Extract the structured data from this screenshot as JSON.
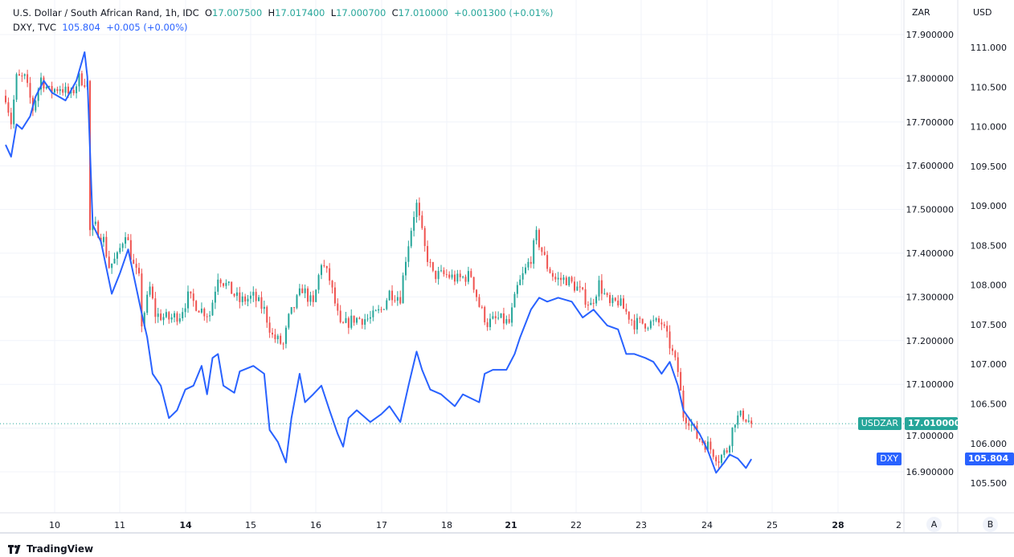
{
  "legend": {
    "main_title": "U.S. Dollar / South African Rand, 1h, IDC",
    "o_label": "O",
    "o_value": "17.007500",
    "h_label": "H",
    "h_value": "17.017400",
    "l_label": "L",
    "l_value": "17.000700",
    "c_label": "C",
    "c_value": "17.010000",
    "change": "+0.001300 (+0.01%)",
    "overlay_title": "DXY, TVC",
    "overlay_value": "105.804",
    "overlay_change": "+0.005 (+0.00%)"
  },
  "scales": {
    "left_unit": "ZAR",
    "right_unit": "USD",
    "left_button": "A",
    "right_button": "B"
  },
  "tags": {
    "main_symbol": "USDZAR",
    "main_price": "17.010000",
    "overlay_symbol": "DXY",
    "overlay_price": "105.804"
  },
  "footer": {
    "brand": "TradingView"
  },
  "colors": {
    "up": "#26a69a",
    "down": "#ef5350",
    "overlay": "#2962ff",
    "grid": "#f0f3fa"
  },
  "chart_data": {
    "type": "candlestick+line",
    "interval": "1h",
    "x_ticks": [
      "10",
      "11",
      "14",
      "15",
      "16",
      "17",
      "18",
      "21",
      "22",
      "23",
      "24",
      "25",
      "28",
      "2"
    ],
    "x_ticks_bold": [
      "14",
      "21",
      "28"
    ],
    "zar_axis": {
      "ticks": [
        "17.900000",
        "17.800000",
        "17.700000",
        "17.600000",
        "17.500000",
        "17.400000",
        "17.300000",
        "17.200000",
        "17.100000",
        "17.000000",
        "16.900000"
      ],
      "range": [
        16.9,
        17.9
      ]
    },
    "usd_axis": {
      "ticks": [
        "111.000",
        "110.500",
        "110.000",
        "109.500",
        "109.000",
        "108.500",
        "108.000",
        "107.500",
        "107.000",
        "106.500",
        "106.000",
        "105.500"
      ],
      "range": [
        105.5,
        111.0
      ]
    },
    "usdzar_close": [
      [
        9,
        6,
        17.76
      ],
      [
        9,
        8,
        17.7
      ],
      [
        9,
        10,
        17.8
      ],
      [
        9,
        13,
        17.8
      ],
      [
        9,
        16,
        17.73
      ],
      [
        9,
        19,
        17.8
      ],
      [
        9,
        22,
        17.77
      ],
      [
        10,
        2,
        17.78
      ],
      [
        10,
        6,
        17.76
      ],
      [
        10,
        9,
        17.8
      ],
      [
        10,
        12,
        17.79
      ],
      [
        10,
        13,
        17.45
      ],
      [
        10,
        15,
        17.46
      ],
      [
        10,
        18,
        17.43
      ],
      [
        10,
        20,
        17.37
      ],
      [
        10,
        23,
        17.39
      ],
      [
        11,
        2,
        17.45
      ],
      [
        11,
        5,
        17.37
      ],
      [
        11,
        7,
        17.34
      ],
      [
        11,
        8,
        17.24
      ],
      [
        11,
        11,
        17.32
      ],
      [
        11,
        13,
        17.26
      ],
      [
        11,
        18,
        17.25
      ],
      [
        11,
        22,
        17.26
      ],
      [
        14,
        1,
        17.3
      ],
      [
        14,
        6,
        17.27
      ],
      [
        14,
        9,
        17.26
      ],
      [
        14,
        12,
        17.35
      ],
      [
        14,
        16,
        17.32
      ],
      [
        14,
        20,
        17.29
      ],
      [
        15,
        1,
        17.3
      ],
      [
        15,
        5,
        17.27
      ],
      [
        15,
        8,
        17.21
      ],
      [
        15,
        12,
        17.19
      ],
      [
        15,
        14,
        17.25
      ],
      [
        15,
        19,
        17.32
      ],
      [
        15,
        23,
        17.28
      ],
      [
        16,
        2,
        17.38
      ],
      [
        16,
        5,
        17.34
      ],
      [
        16,
        9,
        17.23
      ],
      [
        16,
        14,
        17.25
      ],
      [
        16,
        20,
        17.25
      ],
      [
        17,
        0,
        17.27
      ],
      [
        17,
        3,
        17.31
      ],
      [
        17,
        7,
        17.3
      ],
      [
        17,
        9,
        17.39
      ],
      [
        17,
        12,
        17.49
      ],
      [
        17,
        13,
        17.51
      ],
      [
        17,
        16,
        17.41
      ],
      [
        17,
        19,
        17.35
      ],
      [
        18,
        0,
        17.35
      ],
      [
        18,
        4,
        17.34
      ],
      [
        18,
        9,
        17.35
      ],
      [
        18,
        12,
        17.28
      ],
      [
        18,
        15,
        17.24
      ],
      [
        18,
        19,
        17.25
      ],
      [
        18,
        23,
        17.24
      ],
      [
        21,
        2,
        17.32
      ],
      [
        21,
        7,
        17.39
      ],
      [
        21,
        9,
        17.44
      ],
      [
        21,
        13,
        17.37
      ],
      [
        21,
        16,
        17.34
      ],
      [
        21,
        20,
        17.34
      ],
      [
        22,
        0,
        17.32
      ],
      [
        22,
        5,
        17.28
      ],
      [
        22,
        8,
        17.33
      ],
      [
        22,
        12,
        17.28
      ],
      [
        22,
        15,
        17.29
      ],
      [
        22,
        21,
        17.24
      ],
      [
        23,
        3,
        17.24
      ],
      [
        23,
        7,
        17.24
      ],
      [
        23,
        10,
        17.19
      ],
      [
        23,
        13,
        17.13
      ],
      [
        23,
        15,
        17.03
      ],
      [
        23,
        17,
        17.02
      ],
      [
        23,
        20,
        16.98
      ],
      [
        24,
        0,
        16.96
      ],
      [
        24,
        4,
        16.93
      ],
      [
        24,
        7,
        16.95
      ],
      [
        24,
        10,
        17.02
      ],
      [
        24,
        13,
        17.03
      ],
      [
        24,
        16,
        17.01
      ]
    ],
    "dxy_close": [
      [
        9,
        6,
        109.77
      ],
      [
        9,
        8,
        109.62
      ],
      [
        9,
        10,
        110.03
      ],
      [
        9,
        12,
        109.97
      ],
      [
        9,
        15,
        110.13
      ],
      [
        9,
        17,
        110.38
      ],
      [
        9,
        20,
        110.58
      ],
      [
        9,
        23,
        110.43
      ],
      [
        10,
        4,
        110.33
      ],
      [
        10,
        8,
        110.58
      ],
      [
        10,
        11,
        110.94
      ],
      [
        10,
        12,
        110.63
      ],
      [
        10,
        14,
        108.76
      ],
      [
        10,
        17,
        108.55
      ],
      [
        10,
        20,
        108.05
      ],
      [
        10,
        21,
        107.89
      ],
      [
        11,
        0,
        108.15
      ],
      [
        11,
        3,
        108.45
      ],
      [
        11,
        8,
        107.64
      ],
      [
        11,
        10,
        107.34
      ],
      [
        11,
        12,
        106.88
      ],
      [
        11,
        15,
        106.73
      ],
      [
        11,
        18,
        106.32
      ],
      [
        11,
        21,
        106.42
      ],
      [
        14,
        0,
        106.68
      ],
      [
        14,
        3,
        106.73
      ],
      [
        14,
        6,
        106.98
      ],
      [
        14,
        8,
        106.62
      ],
      [
        14,
        10,
        107.08
      ],
      [
        14,
        12,
        107.13
      ],
      [
        14,
        14,
        106.73
      ],
      [
        14,
        18,
        106.64
      ],
      [
        14,
        20,
        106.91
      ],
      [
        15,
        1,
        106.98
      ],
      [
        15,
        5,
        106.88
      ],
      [
        15,
        7,
        106.17
      ],
      [
        15,
        10,
        106.02
      ],
      [
        15,
        13,
        105.76
      ],
      [
        15,
        15,
        106.32
      ],
      [
        15,
        18,
        106.88
      ],
      [
        15,
        20,
        106.52
      ],
      [
        15,
        23,
        106.62
      ],
      [
        16,
        2,
        106.73
      ],
      [
        16,
        5,
        106.42
      ],
      [
        16,
        8,
        106.12
      ],
      [
        16,
        10,
        105.96
      ],
      [
        16,
        12,
        106.32
      ],
      [
        16,
        15,
        106.42
      ],
      [
        16,
        20,
        106.27
      ],
      [
        17,
        0,
        106.37
      ],
      [
        17,
        3,
        106.47
      ],
      [
        17,
        7,
        106.27
      ],
      [
        17,
        10,
        106.73
      ],
      [
        17,
        13,
        107.16
      ],
      [
        17,
        15,
        106.93
      ],
      [
        17,
        18,
        106.68
      ],
      [
        17,
        22,
        106.62
      ],
      [
        18,
        3,
        106.47
      ],
      [
        18,
        6,
        106.62
      ],
      [
        18,
        9,
        106.57
      ],
      [
        18,
        12,
        106.52
      ],
      [
        18,
        14,
        106.88
      ],
      [
        18,
        17,
        106.93
      ],
      [
        18,
        22,
        106.93
      ],
      [
        21,
        1,
        107.13
      ],
      [
        21,
        3,
        107.34
      ],
      [
        21,
        7,
        107.69
      ],
      [
        21,
        10,
        107.84
      ],
      [
        21,
        13,
        107.79
      ],
      [
        21,
        17,
        107.84
      ],
      [
        21,
        22,
        107.79
      ],
      [
        22,
        2,
        107.59
      ],
      [
        22,
        6,
        107.69
      ],
      [
        22,
        11,
        107.49
      ],
      [
        22,
        15,
        107.44
      ],
      [
        22,
        18,
        107.13
      ],
      [
        22,
        21,
        107.13
      ],
      [
        23,
        1,
        107.08
      ],
      [
        23,
        4,
        107.03
      ],
      [
        23,
        7,
        106.88
      ],
      [
        23,
        10,
        107.03
      ],
      [
        23,
        13,
        106.73
      ],
      [
        23,
        15,
        106.42
      ],
      [
        23,
        18,
        106.27
      ],
      [
        23,
        21,
        106.12
      ],
      [
        24,
        0,
        105.91
      ],
      [
        24,
        3,
        105.63
      ],
      [
        24,
        6,
        105.76
      ],
      [
        24,
        8,
        105.86
      ],
      [
        24,
        11,
        105.81
      ],
      [
        24,
        14,
        105.69
      ],
      [
        24,
        16,
        105.804
      ]
    ]
  }
}
